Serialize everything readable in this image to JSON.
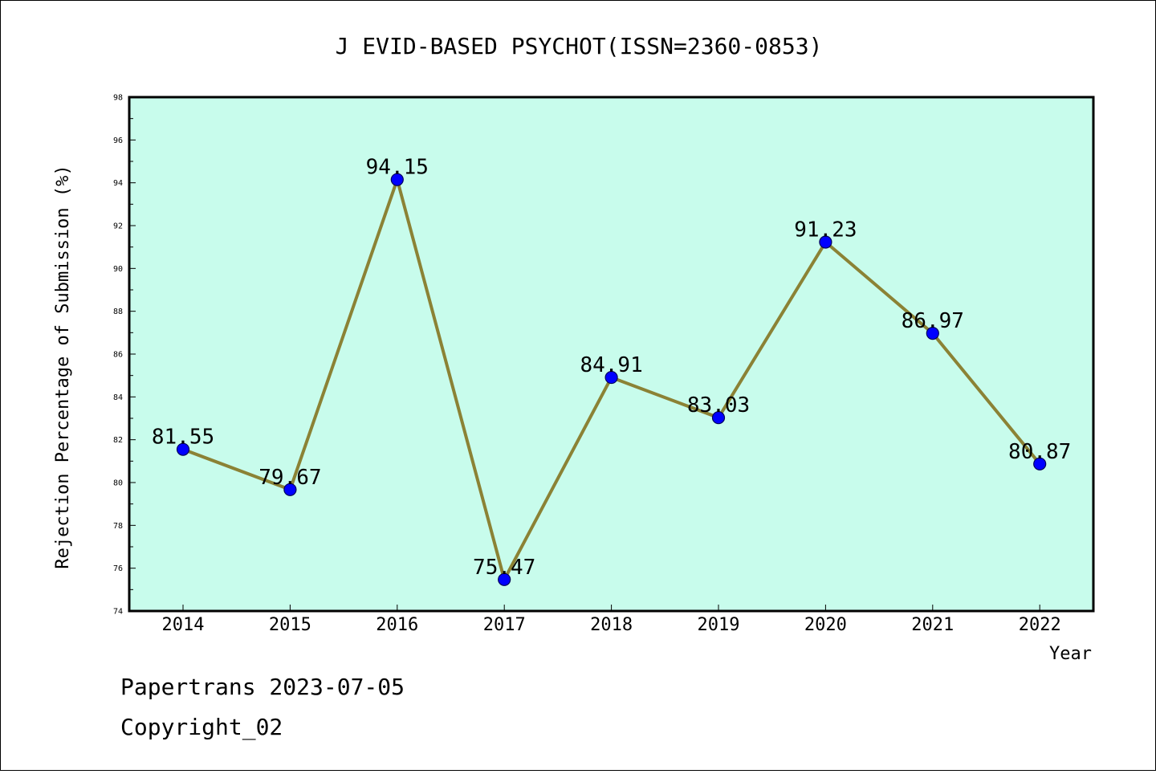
{
  "chart_data": {
    "type": "line",
    "title": "J EVID-BASED PSYCHOT(ISSN=2360-0853)",
    "xlabel": "Year",
    "ylabel": "Rejection Percentage of Submission (%)",
    "categories": [
      "2014",
      "2015",
      "2016",
      "2017",
      "2018",
      "2019",
      "2020",
      "2021",
      "2022"
    ],
    "series": [
      {
        "values": [
          81.55,
          79.67,
          94.15,
          75.47,
          84.91,
          83.03,
          91.23,
          86.97,
          80.87
        ],
        "data_labels": [
          "81.55",
          "79.67",
          "94.15",
          "75.47",
          "84.91",
          "83.03",
          "91.23",
          "86.97",
          "80.87"
        ]
      }
    ],
    "ylim": [
      74,
      98
    ],
    "yticks": [
      "74",
      "76",
      "78",
      "80",
      "82",
      "84",
      "86",
      "88",
      "90",
      "92",
      "94",
      "96",
      "98"
    ],
    "grid": false,
    "colors": {
      "plot_background": "#c8fcec",
      "line": "#8b8235",
      "marker": "#0000ff",
      "marker_edge": "#00005a"
    }
  },
  "footer": {
    "line1": "Papertrans 2023-07-05",
    "line2": "Copyright_02"
  }
}
